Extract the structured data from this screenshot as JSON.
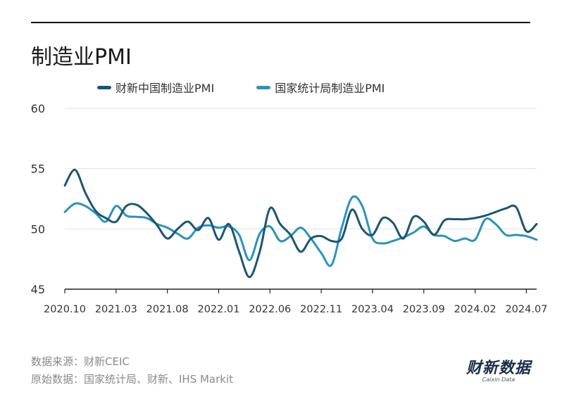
{
  "header": {
    "title": "制造业PMI"
  },
  "footer": {
    "source": "数据来源：财新CEIC",
    "original": "原始数据：国家统计局、财新、IHS Markit"
  },
  "logo": {
    "main": "财新数据",
    "sub": "Caixin Data"
  },
  "colors": {
    "caixin": "#1b5673",
    "nbs": "#2b93bd",
    "grid": "#e2e2e2",
    "axis": "#222222"
  },
  "chart_data": {
    "type": "line",
    "title": "制造业PMI",
    "ylim": [
      45,
      60
    ],
    "yticks": [
      45,
      50,
      55,
      60
    ],
    "xtick_labels": [
      "2020.10",
      "2021.03",
      "2021.08",
      "2022.01",
      "2022.06",
      "2022.11",
      "2023.04",
      "2023.09",
      "2024.02",
      "2024.07"
    ],
    "xtick_index": [
      0,
      5,
      10,
      15,
      20,
      25,
      30,
      35,
      40,
      45
    ],
    "grid": true,
    "legend_position": "top",
    "x": [
      "2020.10",
      "2020.11",
      "2020.12",
      "2021.01",
      "2021.02",
      "2021.03",
      "2021.04",
      "2021.05",
      "2021.06",
      "2021.07",
      "2021.08",
      "2021.09",
      "2021.10",
      "2021.11",
      "2021.12",
      "2022.01",
      "2022.02",
      "2022.03",
      "2022.04",
      "2022.05",
      "2022.06",
      "2022.07",
      "2022.08",
      "2022.09",
      "2022.10",
      "2022.11",
      "2022.12",
      "2023.01",
      "2023.02",
      "2023.03",
      "2023.04",
      "2023.05",
      "2023.06",
      "2023.07",
      "2023.08",
      "2023.09",
      "2023.10",
      "2023.11",
      "2023.12",
      "2024.01",
      "2024.02",
      "2024.03",
      "2024.04",
      "2024.05",
      "2024.06",
      "2024.07",
      "2024.08"
    ],
    "series": [
      {
        "name": "财新中国制造业PMI",
        "color": "#1b5673",
        "values": [
          53.6,
          54.9,
          53.0,
          51.5,
          50.9,
          50.6,
          51.9,
          52.0,
          51.3,
          50.3,
          49.2,
          50.0,
          50.6,
          49.9,
          50.9,
          49.1,
          50.4,
          48.1,
          46.0,
          48.1,
          51.7,
          50.4,
          49.5,
          48.1,
          49.2,
          49.4,
          49.0,
          49.2,
          51.6,
          50.0,
          49.5,
          50.9,
          50.5,
          49.2,
          51.0,
          50.6,
          49.5,
          50.7,
          50.8,
          50.8,
          50.9,
          51.1,
          51.4,
          51.7,
          51.8,
          49.8,
          50.4
        ]
      },
      {
        "name": "国家统计局制造业PMI",
        "color": "#2b93bd",
        "values": [
          51.4,
          52.1,
          51.9,
          51.3,
          50.6,
          51.9,
          51.1,
          51.0,
          50.9,
          50.4,
          50.1,
          49.6,
          49.2,
          50.1,
          50.3,
          50.1,
          50.2,
          49.5,
          47.4,
          49.6,
          50.2,
          49.0,
          49.4,
          50.1,
          49.2,
          48.0,
          47.0,
          50.1,
          52.6,
          51.9,
          49.2,
          48.8,
          49.0,
          49.3,
          49.7,
          50.2,
          49.5,
          49.4,
          49.0,
          49.2,
          49.1,
          50.8,
          50.4,
          49.5,
          49.5,
          49.4,
          49.1
        ]
      }
    ]
  }
}
